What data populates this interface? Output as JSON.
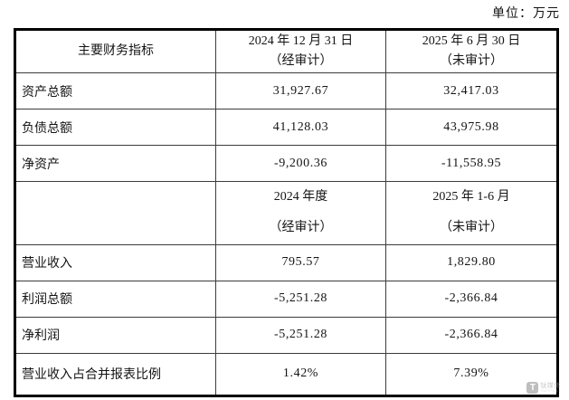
{
  "unit_label": "单位：万元",
  "table": {
    "header1": {
      "col1": "主要财务指标",
      "col2_line1": "2024 年 12 月 31 日",
      "col2_line2": "（经审计）",
      "col3_line1": "2025 年 6 月 30 日",
      "col3_line2": "（未审计）"
    },
    "header2": {
      "col1": "",
      "col2_line1": "2024 年度",
      "col2_line2": "（经审计）",
      "col3_line1": "2025 年 1-6 月",
      "col3_line2": "（未审计）"
    },
    "rows": [
      {
        "label": "资产总额",
        "v_prior": "31,927.67",
        "v_current": "32,417.03"
      },
      {
        "label": "负债总额",
        "v_prior": "41,128.03",
        "v_current": "43,975.98"
      },
      {
        "label": "净资产",
        "v_prior": "-9,200.36",
        "v_current": "-11,558.95"
      },
      {
        "label": "营业收入",
        "v_prior": "795.57",
        "v_current": "1,829.80"
      },
      {
        "label": "利润总额",
        "v_prior": "-5,251.28",
        "v_current": "-2,366.84"
      },
      {
        "label": "净利润",
        "v_prior": "-5,251.28",
        "v_current": "-2,366.84"
      },
      {
        "label": "营业收入占合并报表比例",
        "v_prior": "1.42%",
        "v_current": "7.39%"
      }
    ]
  },
  "watermark": {
    "icon_letter": "T",
    "line1": "钛媒体",
    "line2": "TMTPOST"
  }
}
